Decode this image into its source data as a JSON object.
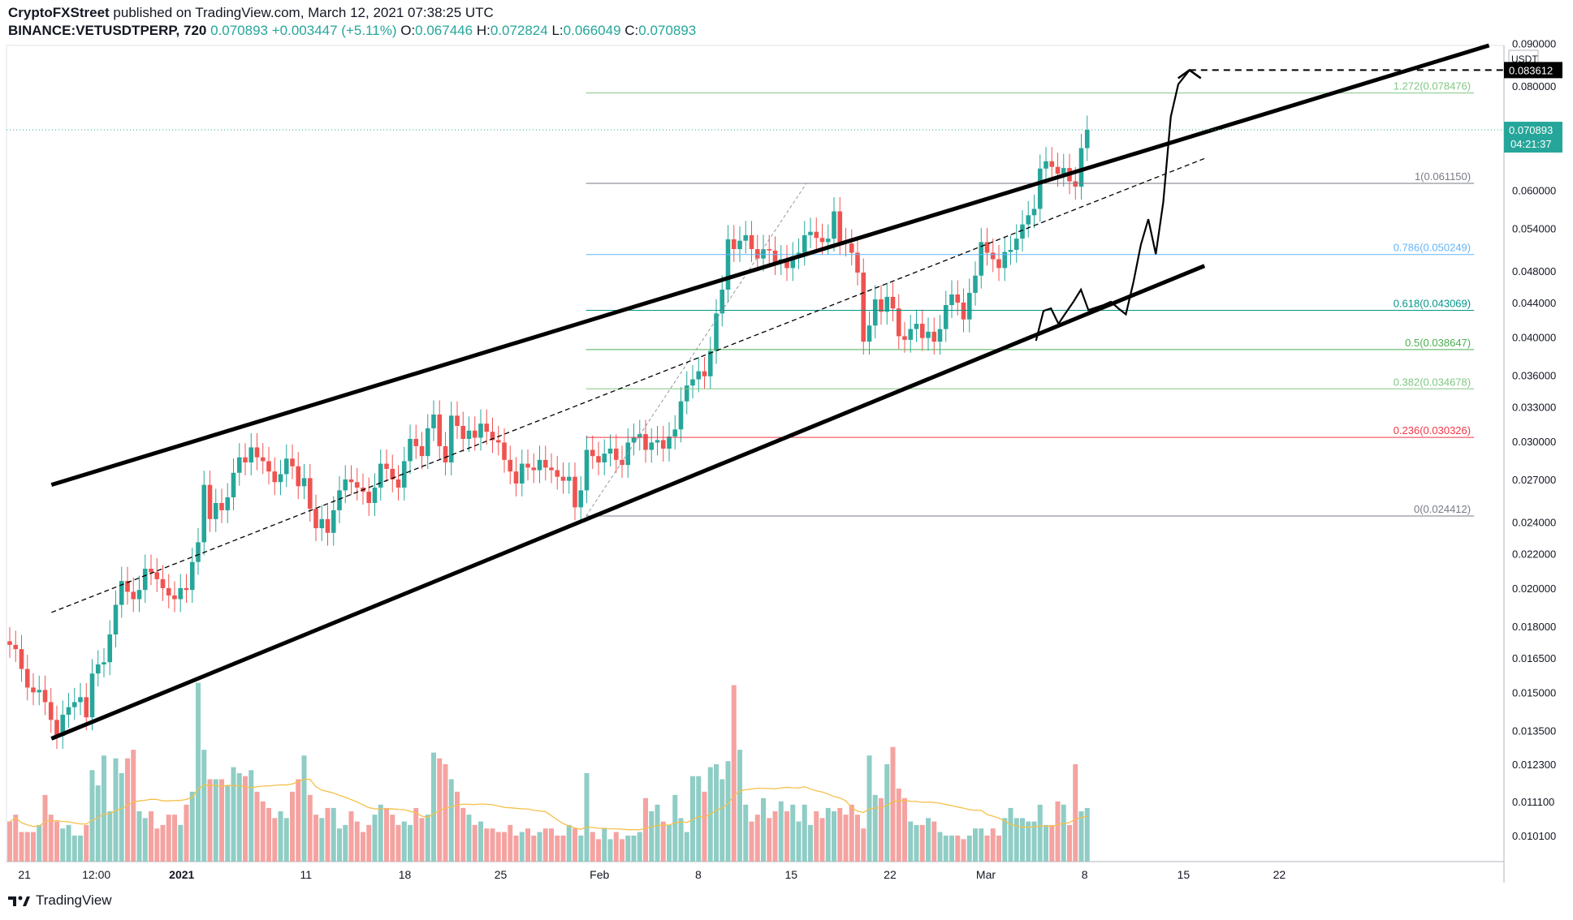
{
  "header": {
    "publisher": "CryptoFXStreet",
    "published_text": "published on TradingView.com, March 12, 2021 07:38:25 UTC",
    "symbol": "BINANCE:VETUSDTPERP, 720",
    "last": "0.070893",
    "change": "+0.003447 (+5.11%)",
    "o_label": "O:",
    "o_value": "0.067446",
    "h_label": "H:",
    "h_value": "0.072824",
    "l_label": "L:",
    "l_value": "0.066049",
    "c_label": "C:",
    "c_value": "0.070893"
  },
  "footer": {
    "brand": "TradingView"
  },
  "colors": {
    "up": "#26a69a",
    "down": "#ef5350",
    "vol_up": "#8fcdc5",
    "vol_down": "#f4a3a1",
    "ma": "#f5c04a"
  },
  "chart_data": {
    "type": "candlestick",
    "y_scale": "log",
    "ylim": [
      0.0094,
      0.0895
    ],
    "currency": "USDT",
    "y_ticks": [
      "0.090000",
      "0.080000",
      "0.060000",
      "0.054000",
      "0.048000",
      "0.044000",
      "0.040000",
      "0.036000",
      "0.033000",
      "0.030000",
      "0.027000",
      "0.024000",
      "0.022000",
      "0.020000",
      "0.018000",
      "0.016500",
      "0.015000",
      "0.013500",
      "0.012300",
      "0.011100",
      "0.010100"
    ],
    "x_ticks": [
      "21",
      "12:00",
      "2021",
      "11",
      "18",
      "25",
      "Feb",
      "8",
      "15",
      "22",
      "Mar",
      "8",
      "15",
      "22"
    ],
    "price_labels": {
      "target": "0.083612",
      "last": "0.070893",
      "countdown": "04:21:37"
    },
    "fibonacci": [
      {
        "level": "1.272",
        "value": "0.078476",
        "color": "#81c784"
      },
      {
        "level": "1",
        "value": "0.061150",
        "color": "#787b86"
      },
      {
        "level": "0.786",
        "value": "0.050249",
        "color": "#64b5f6"
      },
      {
        "level": "0.618",
        "value": "0.043069",
        "color": "#009688"
      },
      {
        "level": "0.5",
        "value": "0.038647",
        "color": "#4caf50"
      },
      {
        "level": "0.382",
        "value": "0.034678",
        "color": "#81c784"
      },
      {
        "level": "0.236",
        "value": "0.030326",
        "color": "#f23645"
      },
      {
        "level": "0",
        "value": "0.024412",
        "color": "#787b86"
      }
    ],
    "closes": [
      0.0171,
      0.0169,
      0.016,
      0.0152,
      0.015,
      0.0151,
      0.0146,
      0.0139,
      0.0133,
      0.0141,
      0.0144,
      0.0146,
      0.0148,
      0.014,
      0.0158,
      0.0162,
      0.0163,
      0.0176,
      0.0191,
      0.0204,
      0.0198,
      0.0194,
      0.0199,
      0.0211,
      0.0209,
      0.0205,
      0.02,
      0.0196,
      0.0194,
      0.02,
      0.0199,
      0.0215,
      0.0227,
      0.0266,
      0.0242,
      0.0253,
      0.0248,
      0.0257,
      0.0275,
      0.0287,
      0.0283,
      0.0295,
      0.0287,
      0.0284,
      0.0276,
      0.0268,
      0.0274,
      0.0286,
      0.028,
      0.0265,
      0.0271,
      0.0249,
      0.0236,
      0.0242,
      0.0233,
      0.0248,
      0.0262,
      0.027,
      0.0268,
      0.0264,
      0.0261,
      0.0253,
      0.0264,
      0.0282,
      0.0278,
      0.027,
      0.0264,
      0.0284,
      0.0302,
      0.0296,
      0.0288,
      0.0311,
      0.0323,
      0.0296,
      0.0283,
      0.0322,
      0.0313,
      0.0302,
      0.0309,
      0.0303,
      0.0315,
      0.0308,
      0.0301,
      0.0299,
      0.0285,
      0.0276,
      0.0267,
      0.0282,
      0.0279,
      0.0277,
      0.0285,
      0.0279,
      0.0277,
      0.0272,
      0.0269,
      0.0272,
      0.025,
      0.0262,
      0.0293,
      0.0288,
      0.0283,
      0.029,
      0.0294,
      0.0285,
      0.0281,
      0.0299,
      0.0303,
      0.0306,
      0.0293,
      0.0299,
      0.0301,
      0.0294,
      0.0304,
      0.031,
      0.0335,
      0.035,
      0.0356,
      0.0364,
      0.0359,
      0.0385,
      0.0427,
      0.0456,
      0.0524,
      0.051,
      0.0522,
      0.053,
      0.051,
      0.0497,
      0.051,
      0.0508,
      0.0492,
      0.0496,
      0.0484,
      0.05,
      0.0505,
      0.053,
      0.0535,
      0.0526,
      0.052,
      0.0525,
      0.0566,
      0.052,
      0.0518,
      0.0505,
      0.0478,
      0.0395,
      0.0413,
      0.0444,
      0.0429,
      0.0447,
      0.0433,
      0.0401,
      0.0397,
      0.0409,
      0.0415,
      0.0399,
      0.0406,
      0.0395,
      0.0409,
      0.0437,
      0.045,
      0.044,
      0.042,
      0.0452,
      0.0474,
      0.052,
      0.0505,
      0.0496,
      0.0484,
      0.0506,
      0.0509,
      0.0525,
      0.0546,
      0.056,
      0.057,
      0.0637,
      0.065,
      0.064,
      0.0628,
      0.0638,
      0.0615,
      0.0606,
      0.0674,
      0.0709
    ],
    "volumes": [
      0.0105,
      0.0107,
      0.0102,
      0.0102,
      0.0102,
      0.0104,
      0.0113,
      0.0107,
      0.0105,
      0.0103,
      0.0104,
      0.0101,
      0.0101,
      0.0104,
      0.0121,
      0.0116,
      0.0126,
      0.0108,
      0.0125,
      0.012,
      0.0125,
      0.0128,
      0.0108,
      0.0106,
      0.0108,
      0.0103,
      0.0104,
      0.0107,
      0.0107,
      0.0104,
      0.011,
      0.0114,
      0.0154,
      0.0128,
      0.0118,
      0.0118,
      0.0118,
      0.0116,
      0.0122,
      0.012,
      0.0119,
      0.0121,
      0.0114,
      0.0111,
      0.0109,
      0.0106,
      0.0108,
      0.0106,
      0.0114,
      0.0118,
      0.0126,
      0.0113,
      0.0107,
      0.0106,
      0.0109,
      0.0109,
      0.0103,
      0.0104,
      0.0108,
      0.0105,
      0.0102,
      0.0104,
      0.0107,
      0.011,
      0.0109,
      0.0107,
      0.0104,
      0.0105,
      0.0104,
      0.0109,
      0.0106,
      0.0107,
      0.0127,
      0.0125,
      0.0123,
      0.0118,
      0.0114,
      0.0109,
      0.0107,
      0.0104,
      0.0105,
      0.0103,
      0.0103,
      0.0102,
      0.0102,
      0.0104,
      0.0101,
      0.0102,
      0.0103,
      0.0101,
      0.0102,
      0.0103,
      0.0103,
      0.0101,
      0.0101,
      0.0104,
      0.0103,
      0.0101,
      0.012,
      0.0102,
      0.01,
      0.0103,
      0.01,
      0.0102,
      0.01,
      0.0101,
      0.0101,
      0.0102,
      0.0112,
      0.0108,
      0.011,
      0.0105,
      0.0104,
      0.0113,
      0.0106,
      0.0102,
      0.0119,
      0.0119,
      0.0114,
      0.0122,
      0.0123,
      0.0118,
      0.0124,
      0.0153,
      0.0128,
      0.011,
      0.0105,
      0.0107,
      0.0112,
      0.0106,
      0.0108,
      0.0111,
      0.0108,
      0.011,
      0.0105,
      0.011,
      0.0104,
      0.0108,
      0.0106,
      0.0109,
      0.0108,
      0.0109,
      0.0107,
      0.011,
      0.0107,
      0.0103,
      0.0126,
      0.0113,
      0.0112,
      0.0123,
      0.0129,
      0.0115,
      0.0112,
      0.0105,
      0.0104,
      0.0104,
      0.0106,
      0.0105,
      0.0102,
      0.0101,
      0.0101,
      0.0101,
      0.01,
      0.0101,
      0.0103,
      0.0103,
      0.0101,
      0.0103,
      0.0101,
      0.0106,
      0.0109,
      0.0106,
      0.0106,
      0.0105,
      0.0105,
      0.011,
      0.0104,
      0.0104,
      0.0111,
      0.011,
      0.0104,
      0.0123,
      0.0108,
      0.0109,
      0.0108,
      0.0105,
      0.0104,
      0.0118,
      0.0108
    ],
    "channel": {
      "upper": [
        [
          0.03,
          0.0266
        ],
        [
          0.99,
          0.0895
        ]
      ],
      "lower": [
        [
          0.03,
          0.0132
        ],
        [
          0.8,
          0.0487
        ]
      ],
      "median": [
        [
          0.03,
          0.0187
        ],
        [
          0.8,
          0.0655
        ]
      ]
    },
    "projection": [
      [
        0.6875,
        0.0396
      ],
      [
        0.6925,
        0.043
      ],
      [
        0.6975,
        0.0433
      ],
      [
        0.7025,
        0.0415
      ],
      [
        0.7075,
        0.0428
      ],
      [
        0.7125,
        0.0441
      ],
      [
        0.7175,
        0.0456
      ],
      [
        0.7225,
        0.0431
      ],
      [
        0.7275,
        0.0434
      ],
      [
        0.7325,
        0.0437
      ],
      [
        0.7375,
        0.0441
      ],
      [
        0.7425,
        0.0433
      ],
      [
        0.7475,
        0.0426
      ],
      [
        0.7525,
        0.0465
      ],
      [
        0.7575,
        0.0516
      ],
      [
        0.7625,
        0.0554
      ],
      [
        0.7675,
        0.0503
      ],
      [
        0.7725,
        0.0581
      ],
      [
        0.7775,
        0.0735
      ],
      [
        0.7825,
        0.0804
      ],
      [
        0.79,
        0.0836
      ]
    ]
  }
}
